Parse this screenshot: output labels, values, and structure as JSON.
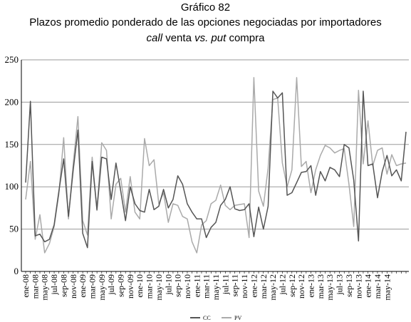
{
  "chart_data": {
    "type": "line",
    "title_line1": "Gráfico 82",
    "title_line2": "Plazos promedio ponderado de las opciones negociadas por importadores",
    "subtitle_parts": [
      {
        "text": "call",
        "italic": true
      },
      {
        "text": " venta ",
        "italic": false
      },
      {
        "text": "vs.",
        "italic": true
      },
      {
        "text": " ",
        "italic": false
      },
      {
        "text": "put",
        "italic": true
      },
      {
        "text": " compra",
        "italic": false
      }
    ],
    "ylim": [
      0,
      250
    ],
    "yticks": [
      0,
      50,
      100,
      150,
      200,
      250
    ],
    "grid": true,
    "legend_position": "bottom-center",
    "x_labels": [
      "ene-08",
      "mar-08",
      "may-08",
      "jul-08",
      "sep-08",
      "nov-08",
      "ene-09",
      "mar-09",
      "may-09",
      "jul-09",
      "sep-09",
      "nov-09",
      "ene-10",
      "mar-10",
      "may-10",
      "jul-10",
      "sep-10",
      "nov-10",
      "ene-11",
      "mar-11",
      "may-11",
      "jul-11",
      "sep-11",
      "nov-11",
      "ene-12",
      "mar-12",
      "may-12",
      "jul-12",
      "sep-12",
      "nov-12",
      "ene-13",
      "mar-13",
      "may-13",
      "jul-13",
      "sep-13",
      "nov-13",
      "ene-14",
      "mar-14",
      "may-14"
    ],
    "series": [
      {
        "name": "CC",
        "color": "#555555",
        "values": [
          105,
          201,
          42,
          44,
          35,
          38,
          55,
          95,
          133,
          65,
          120,
          167,
          45,
          28,
          130,
          73,
          135,
          133,
          85,
          128,
          95,
          60,
          100,
          80,
          72,
          70,
          97,
          73,
          77,
          97,
          75,
          85,
          113,
          103,
          80,
          70,
          62,
          62,
          40,
          52,
          58,
          78,
          85,
          100,
          74,
          72,
          73,
          80,
          41,
          76,
          50,
          77,
          213,
          205,
          211,
          90,
          93,
          105,
          117,
          118,
          125,
          90,
          118,
          107,
          123,
          120,
          112,
          150,
          146,
          108,
          36,
          213,
          125,
          127,
          87,
          118,
          137,
          113,
          120,
          107,
          165
        ]
      },
      {
        "name": "PV",
        "color": "#aaaaaa",
        "values": [
          85,
          130,
          38,
          67,
          22,
          33,
          53,
          92,
          158,
          62,
          127,
          183,
          60,
          43,
          135,
          72,
          152,
          143,
          62,
          103,
          110,
          70,
          112,
          70,
          62,
          157,
          125,
          132,
          80,
          93,
          58,
          80,
          78,
          65,
          62,
          35,
          22,
          55,
          60,
          80,
          84,
          102,
          78,
          73,
          78,
          79,
          80,
          40,
          229,
          95,
          77,
          122,
          203,
          205,
          128,
          100,
          120,
          229,
          124,
          130,
          93,
          120,
          137,
          149,
          146,
          140,
          143,
          145,
          103,
          53,
          214,
          127,
          178,
          125,
          143,
          146,
          115,
          138,
          125,
          127,
          128
        ]
      }
    ]
  }
}
